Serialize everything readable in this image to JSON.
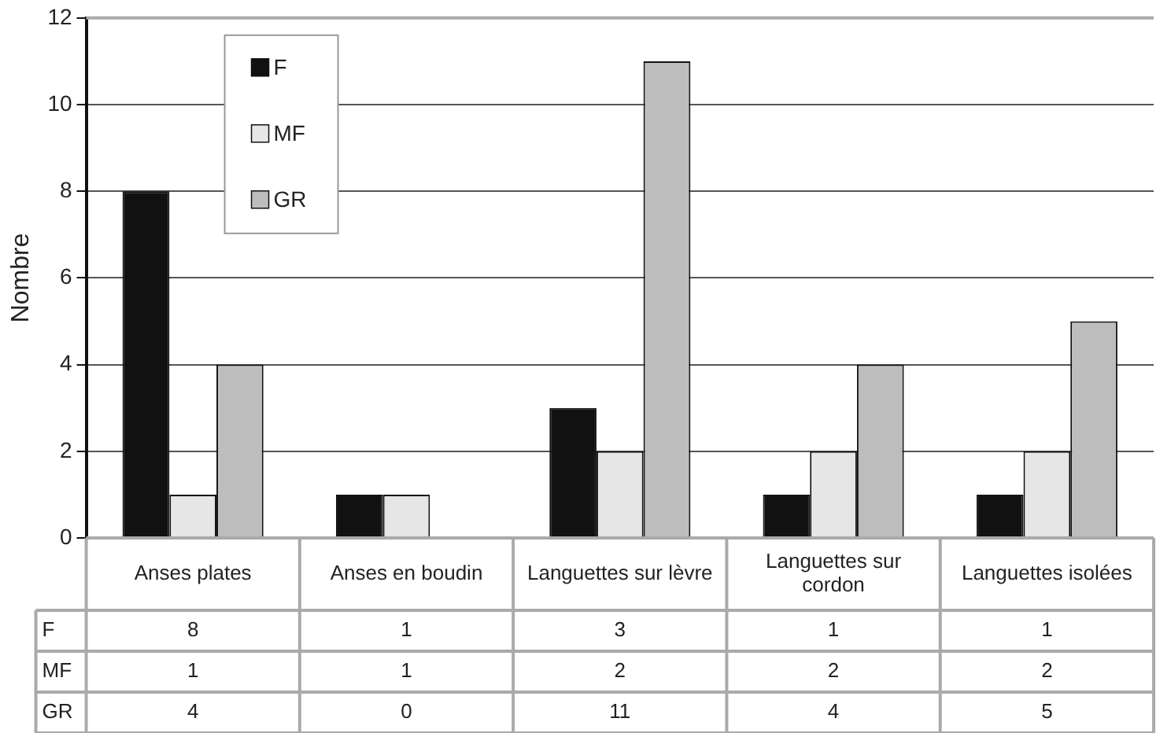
{
  "chart_data": {
    "type": "bar",
    "ylabel": "Nombre",
    "categories": [
      "Anses plates",
      "Anses en boudin",
      "Languettes sur lèvre",
      "Languettes sur cordon",
      "Languettes isolées"
    ],
    "series": [
      {
        "name": "F",
        "color": "#111111",
        "values": [
          8,
          1,
          3,
          1,
          1
        ]
      },
      {
        "name": "MF",
        "color": "#e6e6e6",
        "values": [
          1,
          1,
          2,
          2,
          2
        ]
      },
      {
        "name": "GR",
        "color": "#bdbdbd",
        "values": [
          4,
          0,
          11,
          4,
          5
        ]
      }
    ],
    "ylim": [
      0,
      12
    ],
    "yticks": [
      0,
      2,
      4,
      6,
      8,
      10,
      12
    ],
    "grid": "y",
    "legend": "top left",
    "data_labels": true
  }
}
